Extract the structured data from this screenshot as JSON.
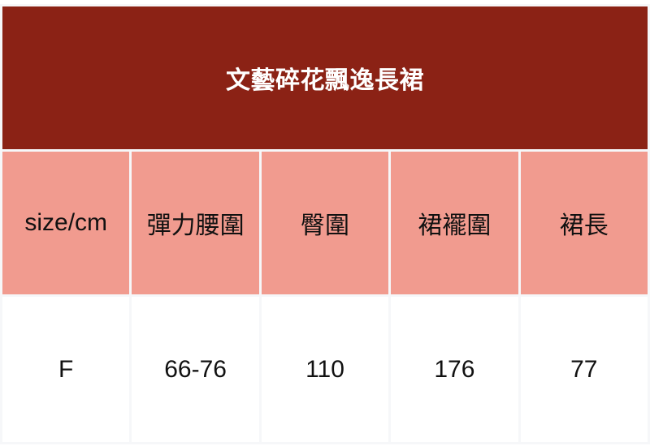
{
  "title": "文藝碎花飄逸長裙",
  "size_chart": {
    "headers": [
      "size/cm",
      "彈力腰圍",
      "臀圍",
      "裙襬圍",
      "裙長"
    ],
    "rows": [
      [
        "F",
        "66-76",
        "110",
        "176",
        "77"
      ]
    ]
  },
  "colors": {
    "banner_bg": "#8b2215",
    "header_row_bg": "#f19b8f",
    "banner_text": "#ffffff",
    "cell_text": "#111111",
    "grid_gap": "#f6f7f9"
  }
}
